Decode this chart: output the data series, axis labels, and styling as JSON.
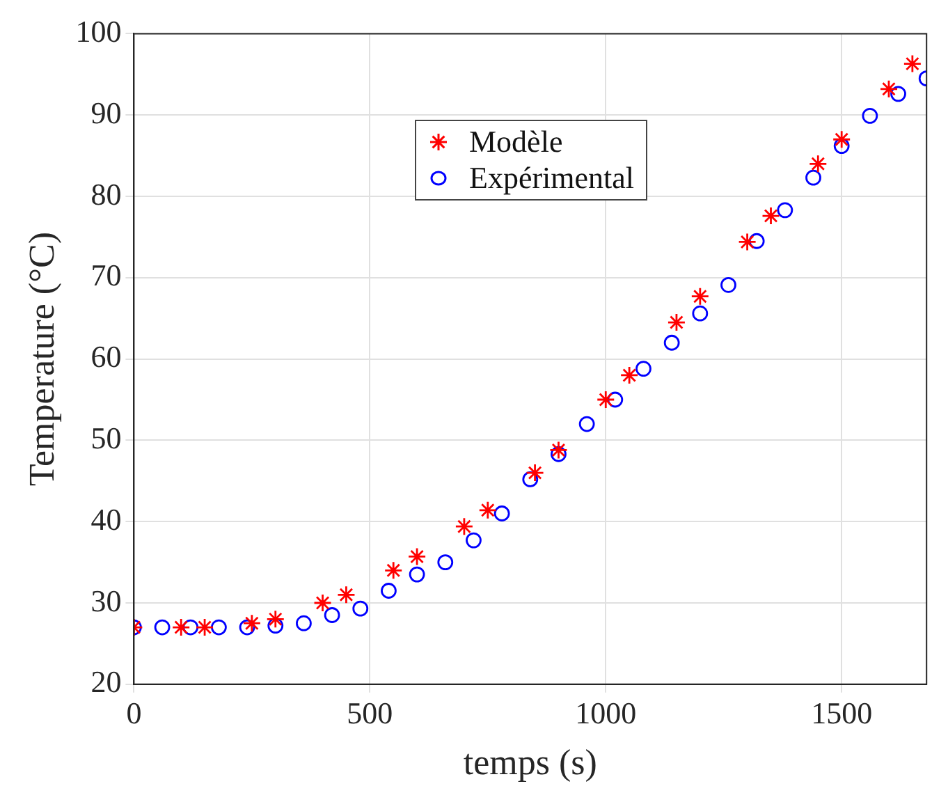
{
  "chart_data": {
    "type": "scatter",
    "xlabel": "temps (s)",
    "ylabel": "Temperature (°C)",
    "xlim": [
      0,
      1680
    ],
    "ylim": [
      20,
      100
    ],
    "xticks": [
      0,
      500,
      1000,
      1500
    ],
    "yticks": [
      20,
      30,
      40,
      50,
      60,
      70,
      80,
      90,
      100
    ],
    "grid": true,
    "legend": "top",
    "series": [
      {
        "name": "Modèle",
        "color": "#ff0000",
        "marker": "cross",
        "x": [
          0,
          100,
          150,
          250,
          300,
          400,
          450,
          550,
          600,
          700,
          750,
          850,
          900,
          1000,
          1050,
          1150,
          1200,
          1300,
          1350,
          1450,
          1500,
          1600,
          1650
        ],
        "values": [
          27,
          27,
          27,
          27.5,
          28,
          30,
          31,
          34,
          35.7,
          39.4,
          41.4,
          46,
          48.8,
          55,
          58,
          64.5,
          67.7,
          74.4,
          77.6,
          84,
          87,
          93.2,
          96.3
        ]
      },
      {
        "name": "Expérimental",
        "color": "#0000ff",
        "marker": "circle",
        "x": [
          0,
          60,
          120,
          180,
          240,
          300,
          360,
          420,
          480,
          540,
          600,
          660,
          720,
          780,
          840,
          900,
          960,
          1020,
          1080,
          1140,
          1200,
          1260,
          1320,
          1380,
          1440,
          1500,
          1560,
          1620,
          1680
        ],
        "values": [
          27,
          27,
          27,
          27,
          27,
          27.2,
          27.5,
          28.5,
          29.3,
          31.5,
          33.5,
          35,
          37.7,
          41,
          45.2,
          48.3,
          52,
          55,
          58.8,
          62,
          65.6,
          69.1,
          74.5,
          78.3,
          82.3,
          86.2,
          89.9,
          92.6,
          94.5
        ]
      }
    ]
  }
}
